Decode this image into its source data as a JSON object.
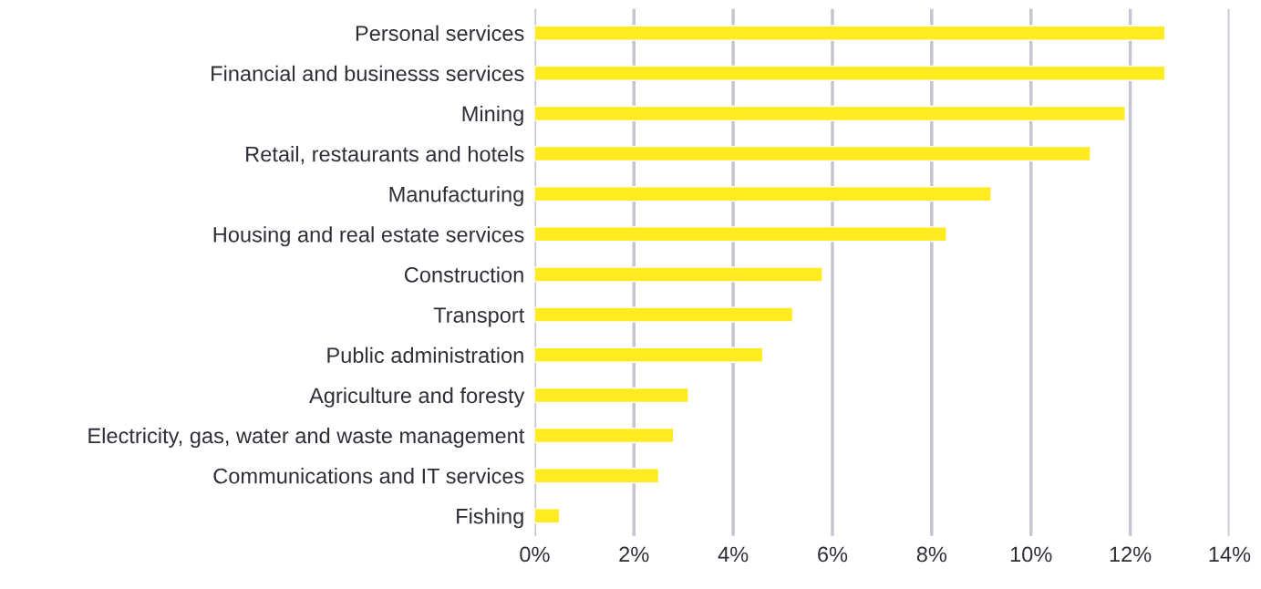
{
  "chart_data": {
    "type": "bar",
    "orientation": "horizontal",
    "categories": [
      "Personal services",
      "Financial and businesss services",
      "Mining",
      "Retail, restaurants and hotels",
      "Manufacturing",
      "Housing and real estate services",
      "Construction",
      "Transport",
      "Public administration",
      "Agriculture and foresty",
      "Electricity, gas, water and waste management",
      "Communications and IT services",
      "Fishing"
    ],
    "series": [
      {
        "color": "#ffeb1f",
        "values": [
          12.7,
          12.7,
          11.9,
          11.2,
          9.2,
          8.3,
          5.8,
          5.2,
          4.6,
          3.1,
          2.8,
          2.5,
          0.5
        ]
      }
    ],
    "xlim": [
      0,
      14
    ],
    "xticks": [
      {
        "value": 0,
        "label": "0%"
      },
      {
        "value": 2,
        "label": "2%"
      },
      {
        "value": 4,
        "label": "4%"
      },
      {
        "value": 6,
        "label": "6%"
      },
      {
        "value": 8,
        "label": "8%"
      },
      {
        "value": 10,
        "label": "10%"
      },
      {
        "value": 12,
        "label": "12%"
      },
      {
        "value": 14,
        "label": "14%"
      }
    ],
    "grid": "x",
    "legend": false
  }
}
